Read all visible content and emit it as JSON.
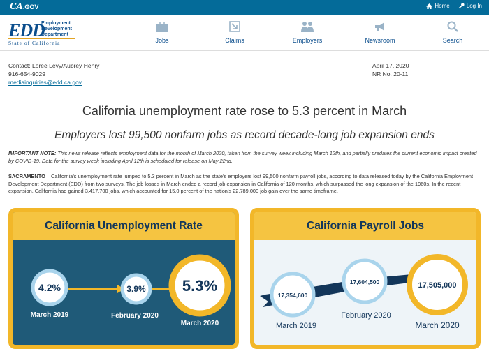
{
  "topbar": {
    "brand_ca": "CA",
    "brand_gov": ".GOV",
    "home": "Home",
    "login": "Log In"
  },
  "logo": {
    "edd": "EDD",
    "dept_line1": "Employment",
    "dept_line2": "Development",
    "dept_line3": "Department",
    "state": "State of California"
  },
  "nav": [
    {
      "label": "Jobs",
      "icon": "briefcase-icon"
    },
    {
      "label": "Claims",
      "icon": "claims-icon"
    },
    {
      "label": "Employers",
      "icon": "people-icon"
    },
    {
      "label": "Newsroom",
      "icon": "megaphone-icon"
    },
    {
      "label": "Search",
      "icon": "search-icon"
    }
  ],
  "contact": {
    "names": "Contact: Loree Levy/Aubrey Henry",
    "phone": "916-654-9029",
    "email": "mediainquiries@edd.ca.gov"
  },
  "release": {
    "date": "April 17, 2020",
    "number": "NR No. 20-11"
  },
  "headline": "California unemployment rate rose to 5.3 percent in March",
  "subheadline": "Employers lost 99,500 nonfarm jobs as record decade-long job expansion ends",
  "note": {
    "label": "IMPORTANT NOTE:",
    "text": " This news release reflects employment data for the month of March 2020, taken from the survey week including March 12th, and partially predates the current economic impact created by COVID-19. Data for the survey week including April 12th is scheduled for release on May 22nd."
  },
  "body": {
    "lead": "SACRAMENTO",
    "text": " – California’s unemployment rate jumped to 5.3 percent in March as the state’s employers lost 99,500 nonfarm payroll jobs, according to data released today by the California Employment Development Department (EDD) from two surveys. The job losses in March ended a record job expansion in California of 120 months, which surpassed the long expansion of the 1960s. In the recent expansion, California had gained 3,417,700 jobs, which accounted for 15.0 percent of the nation’s 22,789,000 job gain over the same timeframe."
  },
  "unemployment": {
    "title": "California Unemployment Rate",
    "points": [
      {
        "value": "4.2%",
        "label": "March 2019"
      },
      {
        "value": "3.9%",
        "label": "February 2020"
      },
      {
        "value": "5.3%",
        "label": "March 2020"
      }
    ]
  },
  "payroll": {
    "title": "California Payroll Jobs",
    "points": [
      {
        "value": "17,354,600",
        "label": "March 2019"
      },
      {
        "value": "17,604,500",
        "label": "February 2020"
      },
      {
        "value": "17,505,000",
        "label": "March 2020"
      }
    ]
  },
  "colors": {
    "topbar": "#046b99",
    "accent": "#f2b729",
    "navy": "#13365a",
    "teal": "#1f5a78"
  }
}
